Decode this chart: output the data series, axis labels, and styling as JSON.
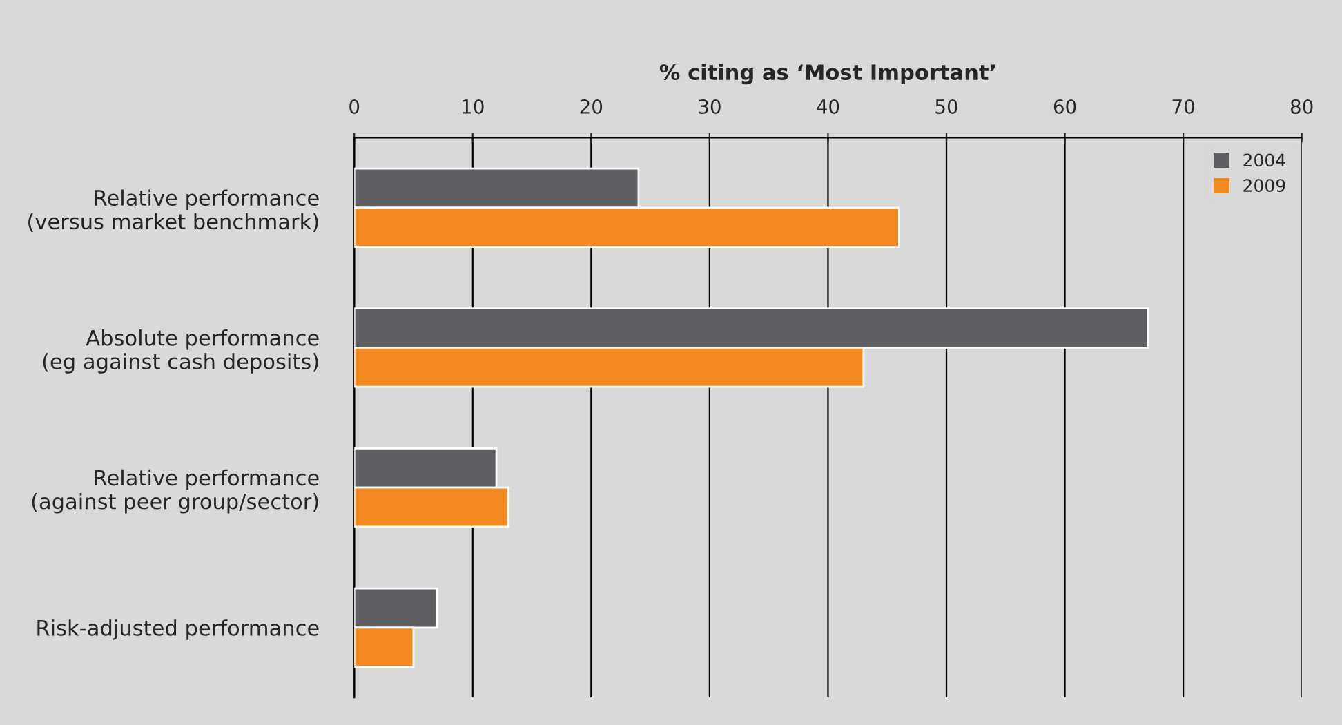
{
  "chart_data": {
    "type": "bar",
    "orientation": "horizontal",
    "xlabel": "% citing as ‘Most Important’",
    "categories": [
      "Relative performance\n(versus market benchmark)",
      "Absolute performance\n(eg against cash deposits)",
      "Relative performance\n(against peer group/sector)",
      "Risk-adjusted performance"
    ],
    "series": [
      {
        "name": "2004",
        "color": "#5f5f63",
        "values": [
          24,
          67,
          12,
          7
        ]
      },
      {
        "name": "2009",
        "color": "#f28a21",
        "values": [
          46,
          43,
          13,
          5
        ]
      }
    ],
    "xlim": [
      0,
      80
    ],
    "xticks": [
      0,
      10,
      20,
      30,
      40,
      50,
      60,
      70,
      80
    ],
    "grid": "x",
    "legend": "top right"
  }
}
